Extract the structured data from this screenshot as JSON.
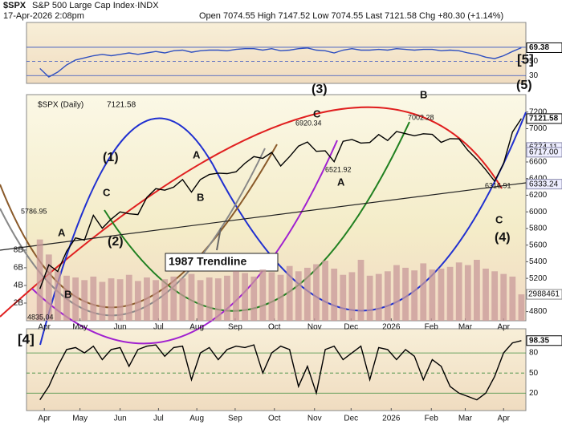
{
  "header": {
    "symbol": "$SPX",
    "name": "S&P 500 Large Cap Index·INDX",
    "date": "17-Apr-2026 2:08pm",
    "quote": "Open 7074.55 High 7147.52 Low 7074.55 Last 7121.58 Chg +80.30 (+1.14%)"
  },
  "chart_data": [
    {
      "type": "line",
      "xlim": [
        -1.5,
        54.5
      ],
      "ylim": [
        19,
        105
      ],
      "yticks": [
        30,
        50,
        70
      ],
      "grid": true,
      "series": [
        {
          "color": "#3050c0",
          "values": [
            40,
            28,
            35,
            45,
            52,
            55,
            58,
            60,
            58,
            60,
            62,
            60,
            62,
            64,
            62,
            65,
            66,
            63,
            65,
            66,
            66,
            65,
            67,
            68,
            68,
            66,
            68,
            65,
            66,
            68,
            69,
            66,
            65,
            62,
            66,
            68,
            66,
            66,
            67,
            66,
            68,
            67,
            66,
            67,
            67,
            65,
            66,
            65,
            62,
            60,
            56,
            54,
            58,
            64,
            69.38
          ]
        }
      ],
      "right_labels": [
        {
          "value": 69.38,
          "label": "69.38"
        }
      ]
    },
    {
      "type": "price",
      "xlim": [
        -1.5,
        54.5
      ],
      "ylim": [
        4690,
        7410
      ],
      "yticks": [
        4800,
        5000,
        5200,
        5400,
        5600,
        5800,
        6000,
        6200,
        6400,
        6600,
        6800,
        7000,
        7200
      ],
      "series": [
        {
          "name": "$SPX (Daily)",
          "color": "#000000",
          "last": "7121.58",
          "values": [
            5074,
            5363,
            5283,
            5525,
            5686,
            5660,
            5958,
            5803,
            5912,
            6000,
            5977,
            5967,
            6173,
            6279,
            6260,
            6297,
            6389,
            6238,
            6389,
            6449,
            6466,
            6460,
            6482,
            6584,
            6664,
            6643,
            6716,
            6552,
            6664,
            6791,
            6840,
            6728,
            6734,
            6603,
            6849,
            6870,
            6827,
            6834,
            6930,
            6858,
            6966,
            6940,
            6915,
            6939,
            6932,
            6836,
            6880,
            6878,
            6740,
            6632,
            6506,
            6368,
            6580,
            6960,
            7121.58
          ]
        }
      ],
      "volume": {
        "color": "#c89a9a",
        "ylim": [
          0,
          25600000000
        ],
        "yticks": [
          {
            "value": 2000000000,
            "label": "2B"
          },
          {
            "value": 4000000000,
            "label": "4B"
          },
          {
            "value": 6000000000,
            "label": "6B"
          },
          {
            "value": 8000000000,
            "label": "8B"
          }
        ],
        "values": [
          9200000000,
          7500000000,
          5600000000,
          5100000000,
          4900000000,
          4600000000,
          5000000000,
          4400000000,
          4800000000,
          4700000000,
          5200000000,
          4500000000,
          4900000000,
          4600000000,
          4700000000,
          5000000000,
          4800000000,
          5300000000,
          4600000000,
          4900000000,
          4800000000,
          5100000000,
          5600000000,
          5400000000,
          5000000000,
          5800000000,
          5500000000,
          5200000000,
          6200000000,
          5600000000,
          6000000000,
          6400000000,
          6800000000,
          5900000000,
          5200000000,
          5500000000,
          6900000000,
          5100000000,
          5300000000,
          5600000000,
          6300000000,
          6000000000,
          5700000000,
          6500000000,
          5800000000,
          5900000000,
          6100000000,
          6600000000,
          6300000000,
          6900000000,
          5900000000,
          5600000000,
          5300000000,
          5000000000,
          2990000000
        ],
        "last_label": "2988461"
      },
      "right_labels": [
        {
          "value": 7121.58,
          "label": "7121.58"
        },
        {
          "value": 6774.11,
          "label": "6774.11"
        },
        {
          "value": 6717,
          "label": "6717.00"
        },
        {
          "value": 6333.24,
          "label": "6333.24"
        }
      ],
      "xticks": [
        {
          "value": 0.5,
          "label": "Apr"
        },
        {
          "value": 4.5,
          "label": "May"
        },
        {
          "value": 9,
          "label": "Jun"
        },
        {
          "value": 13.3,
          "label": "Jul"
        },
        {
          "value": 17.6,
          "label": "Aug"
        },
        {
          "value": 21.9,
          "label": "Sep"
        },
        {
          "value": 26.3,
          "label": "Oct"
        },
        {
          "value": 30.8,
          "label": "Nov"
        },
        {
          "value": 34.9,
          "label": "Dec"
        },
        {
          "value": 39.4,
          "label": "2026"
        },
        {
          "value": 43.9,
          "label": "Feb"
        },
        {
          "value": 47.7,
          "label": "Mar"
        },
        {
          "value": 52,
          "label": "Apr"
        }
      ],
      "annotations": [
        {
          "text": "(1)",
          "color": "#000000"
        },
        {
          "text": "(2)",
          "color": "#000000"
        },
        {
          "text": "(3)",
          "color": "#000000"
        },
        {
          "text": "(4)",
          "color": "#000000"
        },
        {
          "text": "(5)",
          "color": "#000000"
        },
        {
          "text": "[5]",
          "color": "#1a2fd0"
        },
        {
          "text": "C",
          "color": "#9a2fc8"
        },
        {
          "text": "A",
          "color": "#9a2fc8"
        },
        {
          "text": "B",
          "color": "#9a2fc8"
        },
        {
          "text": "A",
          "color": "#9a2fc8"
        },
        {
          "text": "B",
          "color": "#9a2fc8"
        },
        {
          "text": "C",
          "color": "#9a2fc8"
        },
        {
          "text": "A",
          "color": "#9a2fc8"
        },
        {
          "text": "B",
          "color": "#9a2fc8"
        },
        {
          "text": "C",
          "color": "#9a2fc8"
        },
        {
          "text": "1987 Trendline",
          "color": "#000000"
        },
        {
          "text": "5786.95",
          "color": "#000000"
        },
        {
          "text": "4835.04",
          "color": "#000000"
        },
        {
          "text": "6920.34",
          "color": "#000000"
        },
        {
          "text": "6521.92",
          "color": "#000000"
        },
        {
          "text": "7002.28",
          "color": "#000000"
        },
        {
          "text": "6316.91",
          "color": "#000000"
        }
      ]
    },
    {
      "type": "line",
      "xlim": [
        -1.5,
        54.5
      ],
      "ylim": [
        -6,
        116
      ],
      "yticks": [
        20,
        50,
        80
      ],
      "grid": true,
      "series": [
        {
          "color": "#000000",
          "values": [
            10,
            30,
            60,
            85,
            88,
            80,
            90,
            70,
            85,
            88,
            60,
            85,
            90,
            92,
            75,
            88,
            90,
            40,
            80,
            88,
            70,
            85,
            90,
            88,
            92,
            50,
            80,
            90,
            85,
            30,
            60,
            20,
            85,
            90,
            70,
            80,
            90,
            40,
            88,
            85,
            70,
            85,
            75,
            40,
            70,
            60,
            30,
            20,
            15,
            10,
            20,
            45,
            80,
            95,
            98.35
          ]
        }
      ],
      "right_labels": [
        {
          "value": 98.35,
          "label": "98.35"
        }
      ],
      "annotations": [
        {
          "text": "[4]",
          "color": "#1a2fd0"
        }
      ],
      "xticks": [
        {
          "value": 0.5,
          "label": "Apr"
        },
        {
          "value": 4.5,
          "label": "May"
        },
        {
          "value": 9,
          "label": "Jun"
        },
        {
          "value": 13.3,
          "label": "Jul"
        },
        {
          "value": 17.6,
          "label": "Aug"
        },
        {
          "value": 21.9,
          "label": "Sep"
        },
        {
          "value": 26.3,
          "label": "Oct"
        },
        {
          "value": 30.8,
          "label": "Nov"
        },
        {
          "value": 34.9,
          "label": "Dec"
        },
        {
          "value": 39.4,
          "label": "2026"
        },
        {
          "value": 43.9,
          "label": "Feb"
        },
        {
          "value": 47.7,
          "label": "Mar"
        },
        {
          "value": 52,
          "label": "Apr"
        }
      ]
    }
  ]
}
